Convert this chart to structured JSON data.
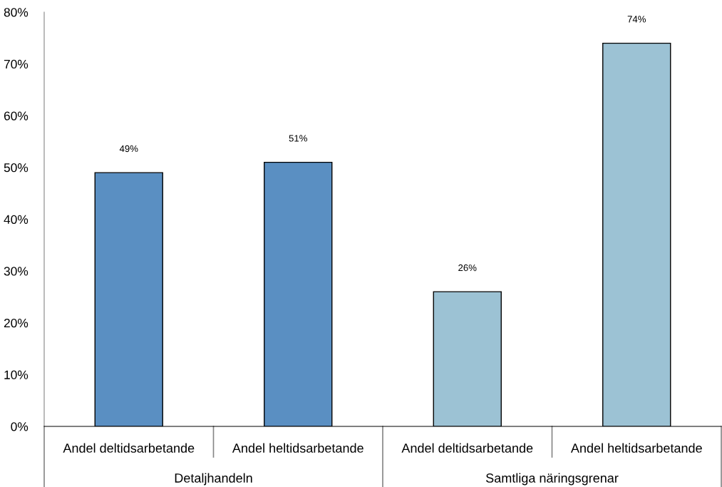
{
  "chart_data": {
    "type": "bar",
    "categories": [
      "Andel deltidsarbetande",
      "Andel heltidsarbetande",
      "Andel deltidsarbetande",
      "Andel heltidsarbetande"
    ],
    "values": [
      49,
      51,
      26,
      74
    ],
    "colors": [
      "#5a8fc2",
      "#5a8fc2",
      "#9cc2d4",
      "#9cc2d4"
    ],
    "value_labels": [
      "49%",
      "51%",
      "26%",
      "74%"
    ],
    "annotations": [
      "Detaljhandeln",
      "Samtliga näringsgrenar"
    ],
    "ylim": [
      0,
      80
    ],
    "yticks": [
      {
        "value": 0,
        "label": "0%"
      },
      {
        "value": 10,
        "label": "10%"
      },
      {
        "value": 20,
        "label": "20%"
      },
      {
        "value": 30,
        "label": "30%"
      },
      {
        "value": 40,
        "label": "40%"
      },
      {
        "value": 50,
        "label": "50%"
      },
      {
        "value": 60,
        "label": "60%"
      },
      {
        "value": 70,
        "label": "70%"
      },
      {
        "value": 80,
        "label": "80%"
      }
    ]
  }
}
